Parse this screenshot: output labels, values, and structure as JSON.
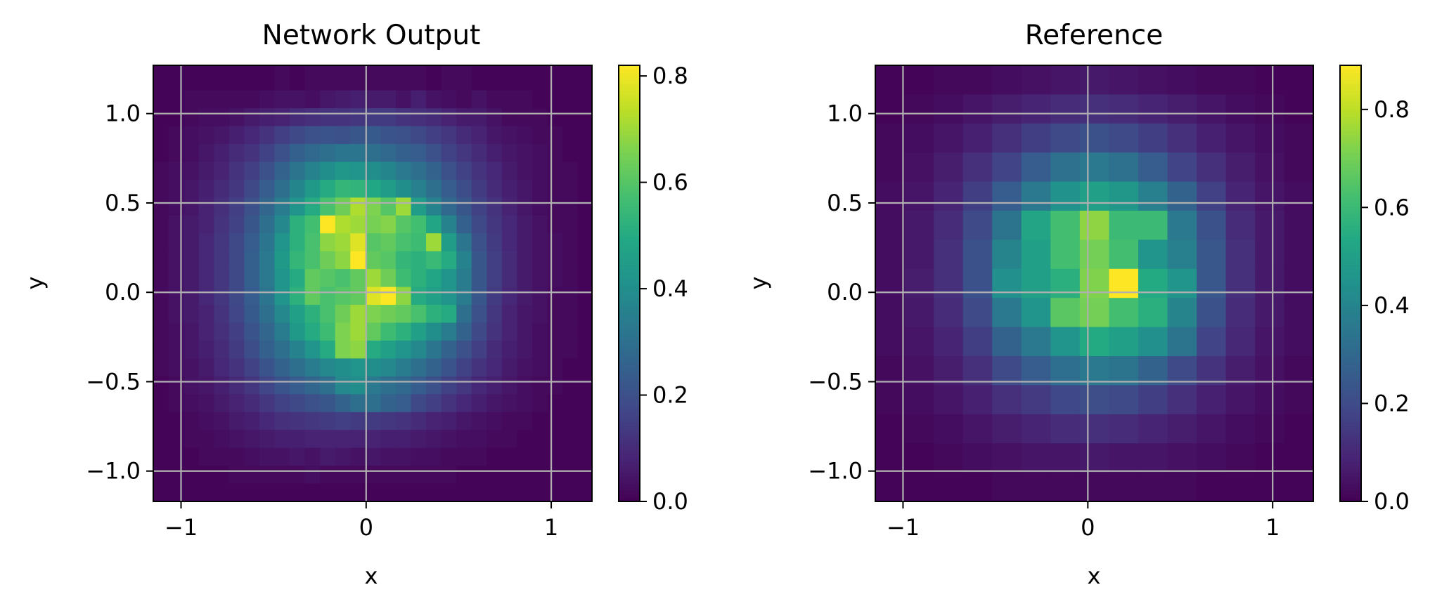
{
  "chart_data": [
    {
      "type": "heatmap",
      "title": "Network Output",
      "xlabel": "x",
      "ylabel": "y",
      "xlim": [
        -1.15,
        1.22
      ],
      "ylim": [
        -1.17,
        1.27
      ],
      "x_ticks": [
        -1,
        0,
        1
      ],
      "x_tick_labels": [
        "−1",
        "0",
        "1"
      ],
      "y_ticks": [
        -1.0,
        -0.5,
        0.0,
        0.5,
        1.0
      ],
      "y_tick_labels": [
        "−1.0",
        "−0.5",
        "0.0",
        "0.5",
        "1.0"
      ],
      "grid": true,
      "colormap": "viridis",
      "colorbar": {
        "min": 0.0,
        "max": 0.82,
        "ticks": [
          0.0,
          0.2,
          0.4,
          0.6,
          0.8
        ],
        "tick_labels": [
          "0.0",
          "0.2",
          "0.4",
          "0.6",
          "0.8"
        ]
      },
      "x_bin_edges": [
        -1.15,
        -1.0681,
        -0.9862,
        -0.9044,
        -0.8225,
        -0.7406,
        -0.6587,
        -0.5768,
        -0.4949,
        -0.4131,
        -0.3312,
        -0.2493,
        -0.1674,
        -0.0855,
        -0.0036,
        0.0783,
        0.1602,
        0.2421,
        0.324,
        0.4058,
        0.4877,
        0.5696,
        0.6515,
        0.7334,
        0.8153,
        0.8971,
        0.979,
        1.0609,
        1.1428,
        1.22
      ],
      "y_bin_edges": [
        -1.17,
        -1.07,
        -0.97,
        -0.87,
        -0.77,
        -0.67,
        -0.57,
        -0.47,
        -0.37,
        -0.27,
        -0.17,
        -0.07,
        0.03,
        0.13,
        0.23,
        0.33,
        0.43,
        0.53,
        0.63,
        0.73,
        0.83,
        0.93,
        1.03,
        1.13,
        1.27
      ],
      "values_top_to_bottom": [
        [
          0.01,
          0.01,
          0.01,
          0.01,
          0.01,
          0.01,
          0.01,
          0.01,
          0.02,
          0.01,
          0.02,
          0.02,
          0.02,
          0.02,
          0.02,
          0.02,
          0.02,
          0.02,
          0.01,
          0.02,
          0.02,
          0.01,
          0.01,
          0.01,
          0.01,
          0.01,
          0.01,
          0.01,
          0.01
        ],
        [
          0.01,
          0.01,
          0.02,
          0.02,
          0.02,
          0.02,
          0.02,
          0.03,
          0.04,
          0.04,
          0.03,
          0.05,
          0.06,
          0.07,
          0.06,
          0.06,
          0.04,
          0.07,
          0.04,
          0.03,
          0.02,
          0.04,
          0.02,
          0.02,
          0.02,
          0.01,
          0.01,
          0.01,
          0.01
        ],
        [
          0.01,
          0.01,
          0.02,
          0.03,
          0.03,
          0.04,
          0.06,
          0.07,
          0.08,
          0.1,
          0.11,
          0.12,
          0.12,
          0.13,
          0.14,
          0.14,
          0.12,
          0.11,
          0.1,
          0.08,
          0.06,
          0.06,
          0.04,
          0.02,
          0.02,
          0.02,
          0.01,
          0.01,
          0.01
        ],
        [
          0.01,
          0.02,
          0.03,
          0.04,
          0.05,
          0.07,
          0.09,
          0.12,
          0.15,
          0.18,
          0.2,
          0.21,
          0.2,
          0.22,
          0.23,
          0.21,
          0.2,
          0.18,
          0.15,
          0.13,
          0.1,
          0.08,
          0.05,
          0.04,
          0.03,
          0.02,
          0.02,
          0.01,
          0.01
        ],
        [
          0.01,
          0.02,
          0.03,
          0.05,
          0.07,
          0.1,
          0.12,
          0.16,
          0.2,
          0.25,
          0.28,
          0.3,
          0.32,
          0.32,
          0.3,
          0.28,
          0.25,
          0.24,
          0.2,
          0.16,
          0.13,
          0.1,
          0.07,
          0.05,
          0.04,
          0.03,
          0.02,
          0.01,
          0.01
        ],
        [
          0.02,
          0.03,
          0.04,
          0.06,
          0.08,
          0.12,
          0.15,
          0.2,
          0.26,
          0.31,
          0.36,
          0.4,
          0.43,
          0.42,
          0.4,
          0.37,
          0.33,
          0.3,
          0.26,
          0.2,
          0.16,
          0.12,
          0.09,
          0.06,
          0.04,
          0.03,
          0.02,
          0.02,
          0.01
        ],
        [
          0.02,
          0.03,
          0.05,
          0.07,
          0.1,
          0.13,
          0.18,
          0.24,
          0.3,
          0.37,
          0.44,
          0.5,
          0.54,
          0.53,
          0.49,
          0.45,
          0.4,
          0.35,
          0.3,
          0.24,
          0.19,
          0.14,
          0.1,
          0.07,
          0.05,
          0.03,
          0.02,
          0.02,
          0.01
        ],
        [
          0.02,
          0.03,
          0.05,
          0.08,
          0.11,
          0.15,
          0.2,
          0.27,
          0.34,
          0.42,
          0.5,
          0.58,
          0.64,
          0.72,
          0.66,
          0.6,
          0.7,
          0.45,
          0.36,
          0.28,
          0.22,
          0.16,
          0.12,
          0.08,
          0.05,
          0.03,
          0.02,
          0.02,
          0.01
        ],
        [
          0.02,
          0.04,
          0.06,
          0.08,
          0.12,
          0.16,
          0.22,
          0.3,
          0.38,
          0.52,
          0.57,
          0.82,
          0.72,
          0.7,
          0.65,
          0.67,
          0.6,
          0.57,
          0.48,
          0.36,
          0.25,
          0.18,
          0.13,
          0.09,
          0.06,
          0.04,
          0.02,
          0.02,
          0.01
        ],
        [
          0.02,
          0.04,
          0.06,
          0.09,
          0.13,
          0.18,
          0.24,
          0.32,
          0.42,
          0.52,
          0.58,
          0.68,
          0.7,
          0.78,
          0.6,
          0.62,
          0.58,
          0.56,
          0.7,
          0.45,
          0.32,
          0.2,
          0.14,
          0.09,
          0.06,
          0.04,
          0.03,
          0.02,
          0.01
        ],
        [
          0.02,
          0.04,
          0.06,
          0.09,
          0.13,
          0.18,
          0.25,
          0.33,
          0.44,
          0.54,
          0.58,
          0.64,
          0.68,
          0.82,
          0.62,
          0.6,
          0.54,
          0.52,
          0.55,
          0.5,
          0.36,
          0.22,
          0.15,
          0.1,
          0.06,
          0.04,
          0.03,
          0.02,
          0.01
        ],
        [
          0.02,
          0.04,
          0.06,
          0.09,
          0.13,
          0.18,
          0.25,
          0.33,
          0.42,
          0.5,
          0.62,
          0.6,
          0.58,
          0.62,
          0.7,
          0.64,
          0.56,
          0.52,
          0.48,
          0.42,
          0.34,
          0.22,
          0.15,
          0.1,
          0.06,
          0.04,
          0.03,
          0.02,
          0.01
        ],
        [
          0.02,
          0.04,
          0.06,
          0.09,
          0.13,
          0.18,
          0.24,
          0.32,
          0.42,
          0.52,
          0.62,
          0.58,
          0.6,
          0.62,
          0.78,
          0.82,
          0.68,
          0.5,
          0.46,
          0.42,
          0.34,
          0.22,
          0.14,
          0.09,
          0.06,
          0.04,
          0.02,
          0.02,
          0.01
        ],
        [
          0.02,
          0.04,
          0.06,
          0.08,
          0.12,
          0.17,
          0.23,
          0.3,
          0.38,
          0.46,
          0.52,
          0.58,
          0.64,
          0.7,
          0.66,
          0.64,
          0.62,
          0.58,
          0.52,
          0.5,
          0.3,
          0.2,
          0.13,
          0.08,
          0.05,
          0.04,
          0.02,
          0.02,
          0.01
        ],
        [
          0.02,
          0.03,
          0.05,
          0.08,
          0.11,
          0.15,
          0.21,
          0.27,
          0.34,
          0.44,
          0.5,
          0.56,
          0.66,
          0.7,
          0.62,
          0.56,
          0.52,
          0.46,
          0.4,
          0.34,
          0.26,
          0.18,
          0.12,
          0.08,
          0.05,
          0.03,
          0.02,
          0.02,
          0.01
        ],
        [
          0.02,
          0.03,
          0.05,
          0.07,
          0.1,
          0.14,
          0.19,
          0.25,
          0.3,
          0.36,
          0.42,
          0.5,
          0.66,
          0.68,
          0.5,
          0.46,
          0.42,
          0.38,
          0.32,
          0.26,
          0.2,
          0.15,
          0.1,
          0.07,
          0.05,
          0.03,
          0.02,
          0.02,
          0.01
        ],
        [
          0.02,
          0.03,
          0.04,
          0.06,
          0.09,
          0.12,
          0.16,
          0.21,
          0.26,
          0.3,
          0.34,
          0.38,
          0.4,
          0.42,
          0.4,
          0.38,
          0.34,
          0.3,
          0.26,
          0.21,
          0.16,
          0.12,
          0.09,
          0.06,
          0.04,
          0.03,
          0.02,
          0.01,
          0.01
        ],
        [
          0.01,
          0.02,
          0.04,
          0.05,
          0.07,
          0.1,
          0.13,
          0.17,
          0.21,
          0.24,
          0.27,
          0.3,
          0.38,
          0.4,
          0.33,
          0.3,
          0.28,
          0.24,
          0.2,
          0.16,
          0.13,
          0.09,
          0.07,
          0.05,
          0.03,
          0.02,
          0.02,
          0.01,
          0.01
        ],
        [
          0.01,
          0.02,
          0.03,
          0.04,
          0.06,
          0.08,
          0.1,
          0.13,
          0.16,
          0.18,
          0.2,
          0.22,
          0.26,
          0.3,
          0.3,
          0.26,
          0.24,
          0.18,
          0.15,
          0.12,
          0.09,
          0.07,
          0.05,
          0.04,
          0.03,
          0.02,
          0.01,
          0.01,
          0.01
        ],
        [
          0.01,
          0.01,
          0.02,
          0.03,
          0.04,
          0.06,
          0.07,
          0.09,
          0.11,
          0.12,
          0.13,
          0.14,
          0.15,
          0.14,
          0.14,
          0.13,
          0.12,
          0.1,
          0.08,
          0.07,
          0.05,
          0.04,
          0.03,
          0.02,
          0.02,
          0.01,
          0.01,
          0.01,
          0.01
        ],
        [
          0.01,
          0.01,
          0.02,
          0.02,
          0.03,
          0.04,
          0.05,
          0.06,
          0.07,
          0.07,
          0.08,
          0.08,
          0.08,
          0.08,
          0.08,
          0.07,
          0.07,
          0.06,
          0.05,
          0.04,
          0.03,
          0.03,
          0.02,
          0.02,
          0.01,
          0.01,
          0.01,
          0.01,
          0.01
        ],
        [
          0.01,
          0.01,
          0.01,
          0.02,
          0.02,
          0.02,
          0.03,
          0.04,
          0.04,
          0.05,
          0.04,
          0.06,
          0.05,
          0.04,
          0.05,
          0.04,
          0.04,
          0.03,
          0.03,
          0.02,
          0.02,
          0.02,
          0.01,
          0.01,
          0.01,
          0.01,
          0.01,
          0.01,
          0.01
        ],
        [
          0.01,
          0.01,
          0.01,
          0.01,
          0.01,
          0.02,
          0.02,
          0.02,
          0.02,
          0.02,
          0.03,
          0.02,
          0.02,
          0.02,
          0.02,
          0.02,
          0.02,
          0.02,
          0.02,
          0.02,
          0.01,
          0.01,
          0.01,
          0.01,
          0.01,
          0.01,
          0.01,
          0.01,
          0.01
        ],
        [
          0.01,
          0.01,
          0.01,
          0.01,
          0.01,
          0.01,
          0.01,
          0.01,
          0.01,
          0.01,
          0.01,
          0.01,
          0.01,
          0.01,
          0.01,
          0.01,
          0.01,
          0.01,
          0.01,
          0.01,
          0.01,
          0.01,
          0.01,
          0.01,
          0.01,
          0.01,
          0.01,
          0.01,
          0.01
        ]
      ]
    },
    {
      "type": "heatmap",
      "title": "Reference",
      "xlabel": "x",
      "ylabel": "y",
      "xlim": [
        -1.15,
        1.22
      ],
      "ylim": [
        -1.17,
        1.27
      ],
      "x_ticks": [
        -1,
        0,
        1
      ],
      "x_tick_labels": [
        "−1",
        "0",
        "1"
      ],
      "y_ticks": [
        -1.0,
        -0.5,
        0.0,
        0.5,
        1.0
      ],
      "y_tick_labels": [
        "−1.0",
        "−0.5",
        "0.0",
        "0.5",
        "1.0"
      ],
      "grid": true,
      "colormap": "viridis",
      "colorbar": {
        "min": 0.0,
        "max": 0.89,
        "ticks": [
          0.0,
          0.2,
          0.4,
          0.6,
          0.8
        ],
        "tick_labels": [
          "0.0",
          "0.2",
          "0.4",
          "0.6",
          "0.8"
        ]
      },
      "x_bin_edges": [
        -1.15,
        -0.9919,
        -0.8339,
        -0.6758,
        -0.5177,
        -0.3597,
        -0.2016,
        -0.0435,
        0.1145,
        0.2726,
        0.4307,
        0.5887,
        0.7468,
        0.9049,
        1.0629,
        1.22
      ],
      "y_bin_edges": [
        -1.17,
        -1.0073,
        -0.8447,
        -0.682,
        -0.5193,
        -0.3567,
        -0.194,
        -0.0313,
        0.1313,
        0.294,
        0.4567,
        0.6193,
        0.782,
        0.9447,
        1.1073,
        1.27
      ],
      "values_top_to_bottom": [
        [
          0.01,
          0.01,
          0.02,
          0.02,
          0.03,
          0.04,
          0.05,
          0.06,
          0.05,
          0.04,
          0.03,
          0.02,
          0.02,
          0.01,
          0.01
        ],
        [
          0.01,
          0.02,
          0.03,
          0.05,
          0.07,
          0.09,
          0.11,
          0.12,
          0.11,
          0.09,
          0.07,
          0.05,
          0.03,
          0.02,
          0.01
        ],
        [
          0.02,
          0.03,
          0.05,
          0.08,
          0.12,
          0.16,
          0.2,
          0.22,
          0.2,
          0.16,
          0.12,
          0.08,
          0.05,
          0.03,
          0.02
        ],
        [
          0.02,
          0.04,
          0.07,
          0.12,
          0.18,
          0.26,
          0.33,
          0.36,
          0.33,
          0.26,
          0.18,
          0.12,
          0.07,
          0.04,
          0.02
        ],
        [
          0.03,
          0.05,
          0.09,
          0.16,
          0.26,
          0.36,
          0.45,
          0.5,
          0.47,
          0.38,
          0.28,
          0.17,
          0.09,
          0.05,
          0.03
        ],
        [
          0.03,
          0.06,
          0.11,
          0.2,
          0.34,
          0.52,
          0.62,
          0.74,
          0.6,
          0.6,
          0.36,
          0.22,
          0.11,
          0.06,
          0.03
        ],
        [
          0.03,
          0.06,
          0.12,
          0.22,
          0.4,
          0.5,
          0.62,
          0.7,
          0.62,
          0.46,
          0.38,
          0.24,
          0.12,
          0.06,
          0.03
        ],
        [
          0.03,
          0.07,
          0.12,
          0.22,
          0.44,
          0.5,
          0.56,
          0.72,
          0.89,
          0.54,
          0.46,
          0.24,
          0.12,
          0.06,
          0.03
        ],
        [
          0.03,
          0.06,
          0.11,
          0.2,
          0.36,
          0.46,
          0.66,
          0.7,
          0.62,
          0.56,
          0.4,
          0.22,
          0.11,
          0.06,
          0.03
        ],
        [
          0.03,
          0.05,
          0.09,
          0.16,
          0.28,
          0.36,
          0.46,
          0.54,
          0.5,
          0.44,
          0.34,
          0.18,
          0.1,
          0.05,
          0.03
        ],
        [
          0.02,
          0.04,
          0.07,
          0.12,
          0.2,
          0.26,
          0.32,
          0.36,
          0.34,
          0.28,
          0.2,
          0.13,
          0.07,
          0.04,
          0.02
        ],
        [
          0.02,
          0.03,
          0.05,
          0.08,
          0.12,
          0.15,
          0.19,
          0.21,
          0.2,
          0.16,
          0.12,
          0.08,
          0.05,
          0.03,
          0.02
        ],
        [
          0.01,
          0.02,
          0.03,
          0.05,
          0.07,
          0.09,
          0.11,
          0.12,
          0.11,
          0.09,
          0.07,
          0.05,
          0.03,
          0.02,
          0.01
        ],
        [
          0.01,
          0.01,
          0.02,
          0.03,
          0.04,
          0.05,
          0.05,
          0.06,
          0.05,
          0.05,
          0.04,
          0.03,
          0.02,
          0.01,
          0.01
        ],
        [
          0.01,
          0.01,
          0.01,
          0.01,
          0.02,
          0.02,
          0.02,
          0.02,
          0.02,
          0.02,
          0.02,
          0.01,
          0.01,
          0.01,
          0.01
        ]
      ]
    }
  ]
}
